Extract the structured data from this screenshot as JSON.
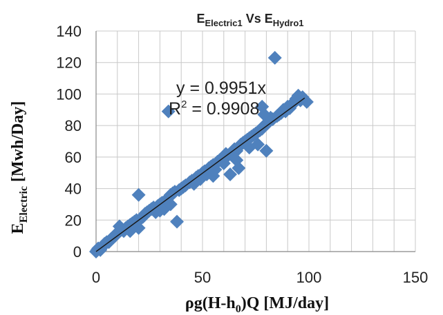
{
  "chart_data": {
    "type": "scatter",
    "title": {
      "parts": [
        {
          "text": "E",
          "sub": false
        },
        {
          "text": "Electric1",
          "sub": true
        },
        {
          "text": " Vs E",
          "sub": false
        },
        {
          "text": "Hydro1",
          "sub": true
        }
      ]
    },
    "xlabel": {
      "parts": [
        {
          "text": "ρg(H-h",
          "sub": false
        },
        {
          "text": "0",
          "sub": true
        },
        {
          "text": ")Q [MJ/day]",
          "sub": false
        }
      ]
    },
    "ylabel": {
      "parts": [
        {
          "text": "E",
          "sub": false
        },
        {
          "text": "Electric",
          "sub": true
        },
        {
          "text": " [Mwh/Day]",
          "sub": false
        }
      ]
    },
    "xlim": [
      0,
      150
    ],
    "ylim": [
      0,
      140
    ],
    "xticks": [
      0,
      50,
      100,
      150
    ],
    "yticks": [
      0,
      20,
      40,
      60,
      80,
      100,
      120,
      140
    ],
    "xtick_labels": [
      "0",
      "50",
      "100",
      "150"
    ],
    "ytick_labels": [
      "0",
      "20",
      "40",
      "60",
      "80",
      "100",
      "120",
      "140"
    ],
    "grid": true,
    "marker_color": "#4f81bd",
    "trendline": {
      "type": "linear",
      "slope": 0.9951,
      "intercept": 0,
      "x_range": [
        0,
        98
      ],
      "color": "#1a1a1a"
    },
    "annotations": {
      "equation": "y = 0.9951x",
      "r2_prefix": "R",
      "r2_sup": "2",
      "r2_suffix": " = 0.9908"
    },
    "points": [
      {
        "x": 0,
        "y": 0
      },
      {
        "x": 0.5,
        "y": 1
      },
      {
        "x": 1,
        "y": 2
      },
      {
        "x": 2,
        "y": 1
      },
      {
        "x": 3,
        "y": 3
      },
      {
        "x": 4,
        "y": 5
      },
      {
        "x": 5,
        "y": 6
      },
      {
        "x": 6,
        "y": 6
      },
      {
        "x": 7,
        "y": 8
      },
      {
        "x": 8,
        "y": 9
      },
      {
        "x": 9,
        "y": 10
      },
      {
        "x": 10,
        "y": 12
      },
      {
        "x": 11,
        "y": 16
      },
      {
        "x": 12,
        "y": 14
      },
      {
        "x": 13,
        "y": 13
      },
      {
        "x": 14,
        "y": 15
      },
      {
        "x": 15,
        "y": 16
      },
      {
        "x": 16,
        "y": 17
      },
      {
        "x": 17,
        "y": 18
      },
      {
        "x": 18,
        "y": 19
      },
      {
        "x": 19,
        "y": 20
      },
      {
        "x": 20,
        "y": 15
      },
      {
        "x": 21,
        "y": 21
      },
      {
        "x": 20,
        "y": 36
      },
      {
        "x": 22,
        "y": 22
      },
      {
        "x": 23,
        "y": 24
      },
      {
        "x": 24,
        "y": 25
      },
      {
        "x": 25,
        "y": 26
      },
      {
        "x": 26,
        "y": 27
      },
      {
        "x": 27,
        "y": 28
      },
      {
        "x": 28,
        "y": 25
      },
      {
        "x": 29,
        "y": 29
      },
      {
        "x": 30,
        "y": 30
      },
      {
        "x": 31,
        "y": 31
      },
      {
        "x": 32,
        "y": 27
      },
      {
        "x": 33,
        "y": 33
      },
      {
        "x": 34,
        "y": 34
      },
      {
        "x": 35,
        "y": 36
      },
      {
        "x": 35,
        "y": 30
      },
      {
        "x": 36,
        "y": 37
      },
      {
        "x": 37,
        "y": 38
      },
      {
        "x": 38,
        "y": 19
      },
      {
        "x": 39,
        "y": 39
      },
      {
        "x": 40,
        "y": 40
      },
      {
        "x": 41,
        "y": 41
      },
      {
        "x": 42,
        "y": 42
      },
      {
        "x": 34,
        "y": 89
      },
      {
        "x": 44,
        "y": 44
      },
      {
        "x": 45,
        "y": 45
      },
      {
        "x": 46,
        "y": 43
      },
      {
        "x": 47,
        "y": 47
      },
      {
        "x": 48,
        "y": 48
      },
      {
        "x": 49,
        "y": 46
      },
      {
        "x": 50,
        "y": 50
      },
      {
        "x": 51,
        "y": 51
      },
      {
        "x": 52,
        "y": 49
      },
      {
        "x": 53,
        "y": 53
      },
      {
        "x": 54,
        "y": 54
      },
      {
        "x": 55,
        "y": 55
      },
      {
        "x": 56,
        "y": 52
      },
      {
        "x": 57,
        "y": 57
      },
      {
        "x": 58,
        "y": 58
      },
      {
        "x": 59,
        "y": 59
      },
      {
        "x": 60,
        "y": 60
      },
      {
        "x": 61,
        "y": 62
      },
      {
        "x": 62,
        "y": 61
      },
      {
        "x": 63,
        "y": 49
      },
      {
        "x": 64,
        "y": 63
      },
      {
        "x": 65,
        "y": 65
      },
      {
        "x": 66,
        "y": 64
      },
      {
        "x": 67,
        "y": 53
      },
      {
        "x": 68,
        "y": 68
      },
      {
        "x": 69,
        "y": 69
      },
      {
        "x": 70,
        "y": 70
      },
      {
        "x": 71,
        "y": 71
      },
      {
        "x": 72,
        "y": 72
      },
      {
        "x": 73,
        "y": 73
      },
      {
        "x": 74,
        "y": 74
      },
      {
        "x": 75,
        "y": 75
      },
      {
        "x": 76,
        "y": 68
      },
      {
        "x": 77,
        "y": 77
      },
      {
        "x": 78,
        "y": 78
      },
      {
        "x": 79,
        "y": 80
      },
      {
        "x": 80,
        "y": 81
      },
      {
        "x": 80,
        "y": 64
      },
      {
        "x": 81,
        "y": 82
      },
      {
        "x": 82,
        "y": 85
      },
      {
        "x": 83,
        "y": 84
      },
      {
        "x": 84,
        "y": 123
      },
      {
        "x": 85,
        "y": 86
      },
      {
        "x": 86,
        "y": 87
      },
      {
        "x": 87,
        "y": 88
      },
      {
        "x": 88,
        "y": 90
      },
      {
        "x": 89,
        "y": 89
      },
      {
        "x": 90,
        "y": 92
      },
      {
        "x": 91,
        "y": 91
      },
      {
        "x": 92,
        "y": 93
      },
      {
        "x": 93,
        "y": 95
      },
      {
        "x": 94,
        "y": 97
      },
      {
        "x": 95,
        "y": 99
      },
      {
        "x": 96,
        "y": 96
      },
      {
        "x": 97,
        "y": 98
      },
      {
        "x": 99,
        "y": 95
      },
      {
        "x": 78,
        "y": 92
      },
      {
        "x": 79,
        "y": 87
      },
      {
        "x": 76,
        "y": 76
      },
      {
        "x": 72,
        "y": 66
      },
      {
        "x": 66,
        "y": 58
      },
      {
        "x": 60,
        "y": 56
      },
      {
        "x": 55,
        "y": 48
      },
      {
        "x": 30,
        "y": 26
      },
      {
        "x": 16,
        "y": 13
      }
    ]
  }
}
